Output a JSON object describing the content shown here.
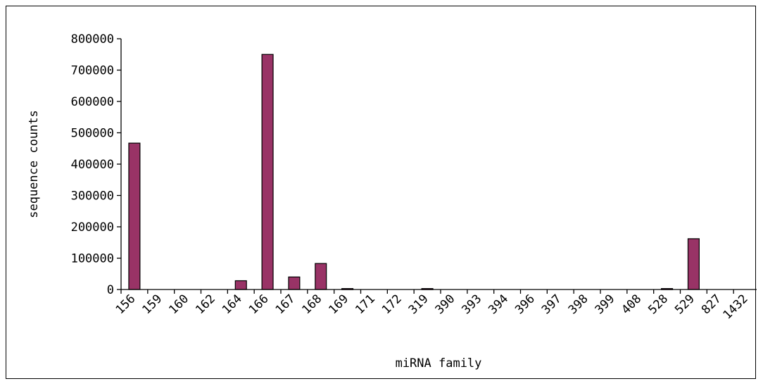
{
  "chart_data": {
    "type": "bar",
    "xlabel": "miRNA family",
    "ylabel": "sequence counts",
    "ylim": [
      0,
      800000
    ],
    "yticks": [
      0,
      100000,
      200000,
      300000,
      400000,
      500000,
      600000,
      700000,
      800000
    ],
    "categories": [
      "156",
      "159",
      "160",
      "162",
      "164",
      "166",
      "167",
      "168",
      "169",
      "171",
      "172",
      "319",
      "390",
      "393",
      "394",
      "396",
      "397",
      "398",
      "399",
      "408",
      "528",
      "529",
      "827",
      "1432"
    ],
    "values": [
      467000,
      0,
      0,
      0,
      28000,
      750000,
      40000,
      83000,
      3000,
      0,
      0,
      3000,
      0,
      0,
      0,
      0,
      0,
      0,
      0,
      0,
      3000,
      162000,
      0,
      0
    ],
    "bar_color": "#993366",
    "grid": false,
    "legend": "none"
  }
}
